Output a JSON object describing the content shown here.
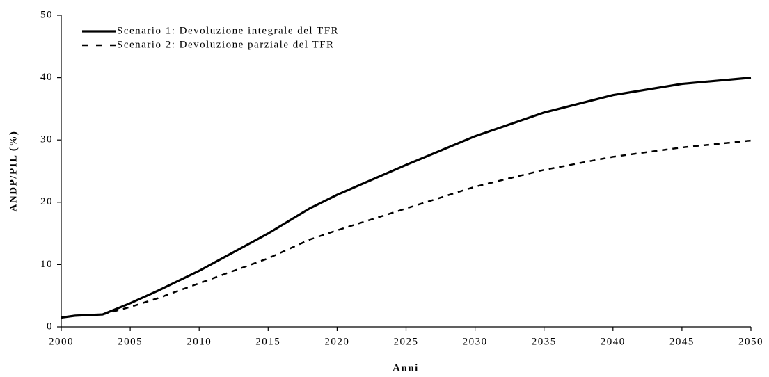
{
  "chart_data": {
    "type": "line",
    "xlabel": "Anni",
    "ylabel": "ANDP/PIL (%)",
    "x": [
      2000,
      2001,
      2003,
      2005,
      2007,
      2010,
      2015,
      2018,
      2020,
      2025,
      2030,
      2035,
      2040,
      2045,
      2050
    ],
    "series": [
      {
        "name": "Scenario 1: Devoluzione integrale del TFR",
        "color": "#000000",
        "dash": "solid",
        "values": [
          1.5,
          1.8,
          2.0,
          3.8,
          5.8,
          9,
          15,
          19,
          21.2,
          26,
          30.6,
          34.4,
          37.2,
          39,
          40
        ]
      },
      {
        "name": "Scenario 2: Devoluzione parziale del TFR",
        "color": "#000000",
        "dash": "dashed",
        "values": [
          1.5,
          1.8,
          2.0,
          3.2,
          4.6,
          7,
          11,
          14,
          15.5,
          19,
          22.5,
          25.2,
          27.3,
          28.8,
          29.9
        ]
      }
    ],
    "xlim": [
      2000,
      2050
    ],
    "xticks": [
      2000,
      2005,
      2010,
      2015,
      2020,
      2025,
      2030,
      2035,
      2040,
      2045,
      2050
    ],
    "ylim": [
      0,
      50
    ],
    "yticks": [
      0,
      10,
      20,
      30,
      40,
      50
    ],
    "grid": false,
    "legend": "upper left"
  }
}
